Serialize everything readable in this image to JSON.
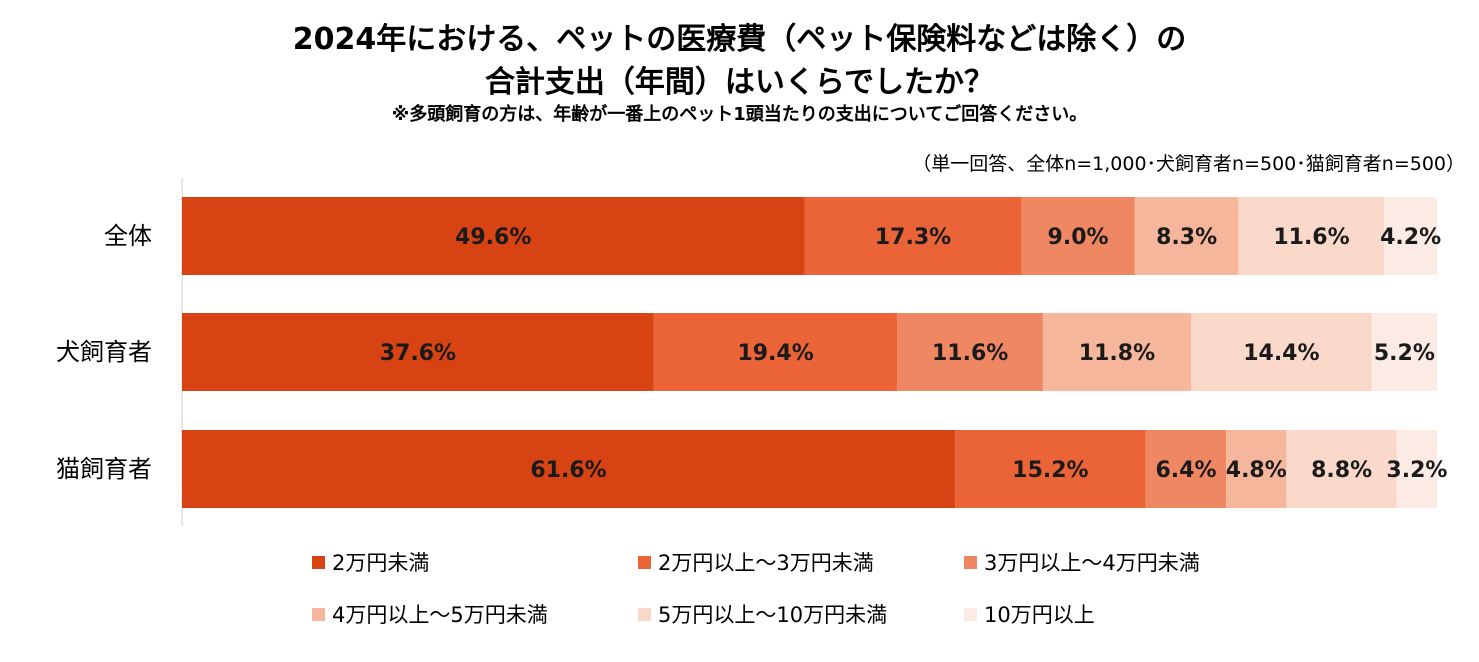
{
  "header": {
    "title_line1": "2024年における、ペットの医療費（ペット保険料などは除く）の",
    "title_line2": "合計支出（年間）はいくらでしたか？",
    "subtitle": "※多頭飼育の方は、年齢が一番上のペット1頭当たりの支出についてご回答ください。",
    "note": "（単一回答、全体n=1,000･犬飼育者n=500･猫飼育者n=500）"
  },
  "chart_data": {
    "type": "bar",
    "orientation": "horizontal",
    "stacked": true,
    "percent_stacked": true,
    "categories": [
      "全体",
      "犬飼育者",
      "猫飼育者"
    ],
    "series": [
      {
        "name": "2万円未満",
        "color": "#D84313",
        "values": [
          49.6,
          37.6,
          61.6
        ],
        "labels": [
          "49.6%",
          "37.6%",
          "61.6%"
        ]
      },
      {
        "name": "2万円以上～3万円未満",
        "color": "#EB6437",
        "values": [
          17.3,
          19.4,
          15.2
        ],
        "labels": [
          "17.3%",
          "19.4%",
          "15.2%"
        ]
      },
      {
        "name": "3万円以上～4万円未満",
        "color": "#F08763",
        "values": [
          9.0,
          11.6,
          6.4
        ],
        "labels": [
          "9.0%",
          "11.6%",
          "6.4%"
        ]
      },
      {
        "name": "4万円以上～5万円未満",
        "color": "#F5B69C",
        "values": [
          8.3,
          11.8,
          4.8
        ],
        "labels": [
          "8.3%",
          "11.8%",
          "4.8%"
        ]
      },
      {
        "name": "5万円以上～10万円未満",
        "color": "#FAD9CB",
        "values": [
          11.6,
          14.4,
          8.8
        ],
        "labels": [
          "11.6%",
          "14.4%",
          "8.8%"
        ]
      },
      {
        "name": "10万円以上",
        "color": "#FCEBE4",
        "values": [
          4.2,
          5.2,
          3.2
        ],
        "labels": [
          "4.2%",
          "5.2%",
          "3.2%"
        ]
      }
    ],
    "xlim": [
      0,
      100
    ],
    "grid": false,
    "legend_position": "bottom"
  }
}
